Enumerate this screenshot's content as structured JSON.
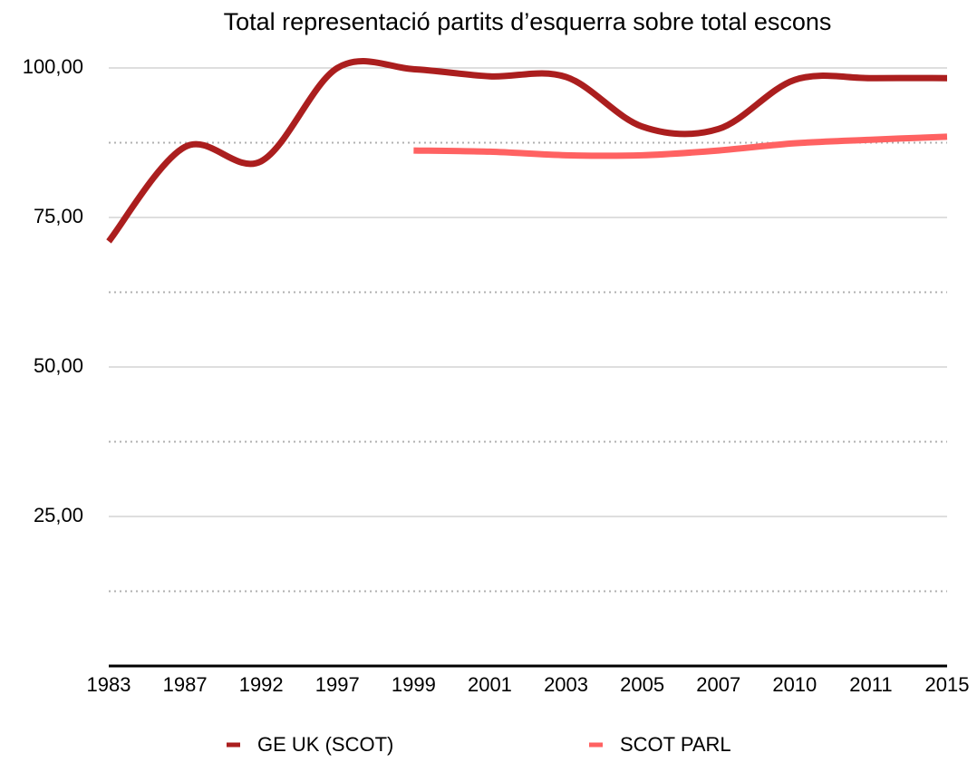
{
  "chart_data": {
    "type": "line",
    "title": "Total representació partits d’esquerra sobre total escons",
    "categories": [
      "1983",
      "1987",
      "1992",
      "1997",
      "1999",
      "2001",
      "2003",
      "2005",
      "2007",
      "2010",
      "2011",
      "2015"
    ],
    "series": [
      {
        "name": "GE UK (SCOT)",
        "color": "#ab1e1e",
        "values": [
          71,
          86.8,
          84.4,
          100,
          99.8,
          98.6,
          98.5,
          90.2,
          89.8,
          98,
          98.3,
          98.3
        ]
      },
      {
        "name": "SCOT PARL",
        "color": "#ff6262",
        "values": [
          null,
          null,
          null,
          null,
          86.2,
          86,
          85.4,
          85.4,
          86.2,
          87.4,
          88,
          88.5
        ]
      }
    ],
    "ylim": [
      0,
      100
    ],
    "yticks": [
      {
        "value": 25,
        "label": "25,00"
      },
      {
        "value": 50,
        "label": "50,00"
      },
      {
        "value": 75,
        "label": "75,00"
      },
      {
        "value": 100,
        "label": "100,00"
      }
    ],
    "minor_yticks": [
      12.5,
      37.5,
      62.5,
      87.5
    ],
    "grid": true,
    "legend": "bottom"
  }
}
